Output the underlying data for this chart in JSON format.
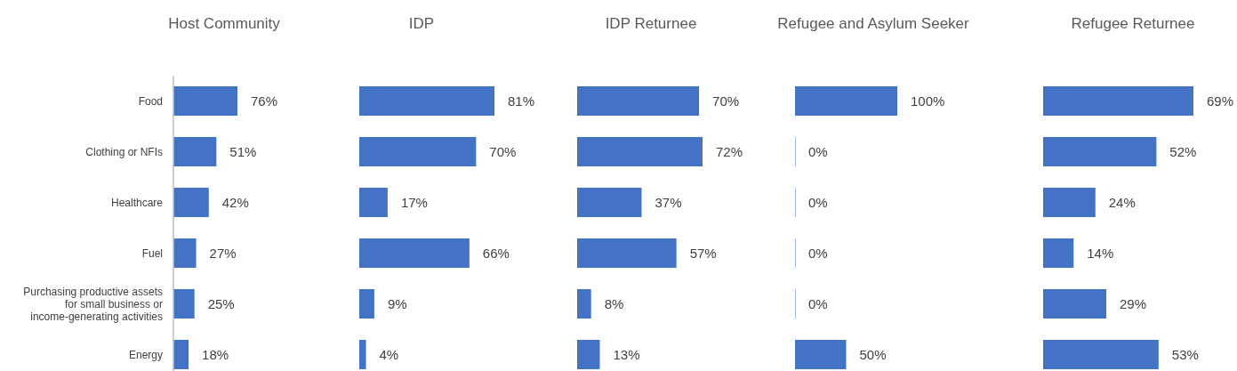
{
  "chart_data": [
    {
      "type": "bar",
      "orientation": "horizontal",
      "title": "Host Community",
      "categories": [
        "Food",
        "Clothing or NFIs",
        "Healthcare",
        "Fuel",
        "Purchasing productive assets for small business or income-generating activities",
        "Energy"
      ],
      "values": [
        76,
        51,
        42,
        27,
        25,
        18
      ],
      "value_labels": [
        "76%",
        "51%",
        "42%",
        "27%",
        "25%",
        "18%"
      ],
      "color": "#4472c4",
      "tick_labels": "y"
    },
    {
      "type": "bar",
      "orientation": "horizontal",
      "title": "IDP",
      "values": [
        81,
        70,
        17,
        66,
        9,
        4
      ],
      "value_labels": [
        "81%",
        "70%",
        "17%",
        "66%",
        "9%",
        "4%"
      ],
      "color": "#4472c4",
      "tick_labels": false
    },
    {
      "type": "bar",
      "orientation": "horizontal",
      "title": "IDP Returnee",
      "values": [
        70,
        72,
        37,
        57,
        8,
        13
      ],
      "value_labels": [
        "70%",
        "72%",
        "37%",
        "57%",
        "8%",
        "13%"
      ],
      "color": "#4472c4",
      "tick_labels": false
    },
    {
      "type": "bar",
      "orientation": "horizontal",
      "title": "Refugee and Asylum Seeker",
      "values": [
        100,
        0,
        0,
        0,
        0,
        50
      ],
      "value_labels": [
        "100%",
        "0%",
        "0%",
        "0%",
        "0%",
        "50%"
      ],
      "color": "#4472c4",
      "tick_labels": false
    },
    {
      "type": "bar",
      "orientation": "horizontal",
      "title": "Refugee Returnee",
      "values": [
        69,
        52,
        24,
        14,
        29,
        53
      ],
      "value_labels": [
        "69%",
        "52%",
        "24%",
        "14%",
        "29%",
        "53%"
      ],
      "color": "#4472c4",
      "tick_labels": false
    }
  ]
}
